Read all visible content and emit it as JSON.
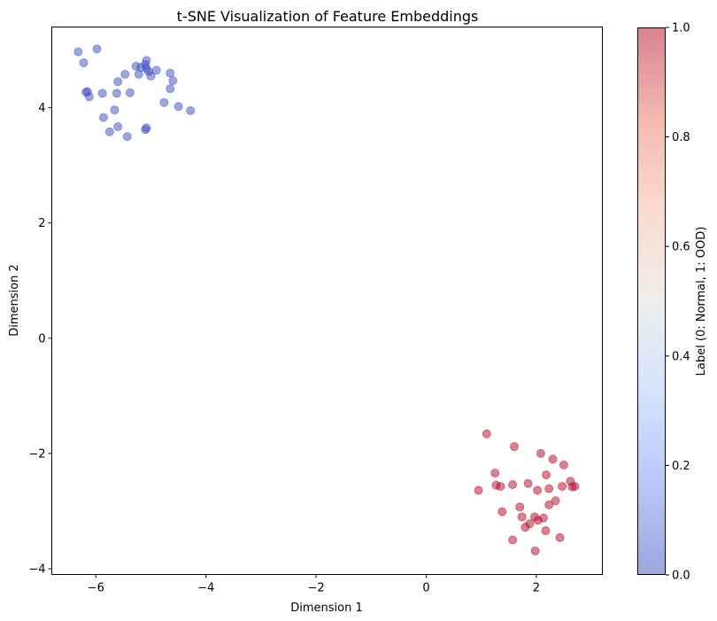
{
  "chart_data": {
    "type": "scatter",
    "title": "t-SNE Visualization of Feature Embeddings",
    "xlabel": "Dimension 1",
    "ylabel": "Dimension 2",
    "xlim": [
      -6.8,
      3.2
    ],
    "ylim": [
      -4.1,
      5.4
    ],
    "xticks": [
      -6,
      -4,
      -2,
      0,
      2
    ],
    "yticks": [
      -4,
      -2,
      0,
      2,
      4
    ],
    "tick_labels": {
      "x": [
        "−6",
        "−4",
        "−2",
        "0",
        "2"
      ],
      "y": [
        "−4",
        "−2",
        "0",
        "2",
        "4"
      ]
    },
    "grid": false,
    "colormap": "coolwarm",
    "point_alpha": 0.5,
    "colorbar": {
      "label": "Label (0: Normal, 1: OOD)",
      "range": [
        0.0,
        1.0
      ],
      "ticks": [
        0.0,
        0.2,
        0.4,
        0.6,
        0.8,
        1.0
      ],
      "tick_labels": [
        "0.0",
        "0.2",
        "0.4",
        "0.6",
        "0.8",
        "1.0"
      ],
      "colors": [
        "#3b4cc0",
        "#6f92f3",
        "#aac7fd",
        "#dddcdc",
        "#f7b89c",
        "#e7745b",
        "#b40426"
      ]
    },
    "series": [
      {
        "label_value": 0,
        "color": "#3b4cc0",
        "points": [
          [
            -6.32,
            4.97
          ],
          [
            -6.22,
            4.78
          ],
          [
            -5.98,
            5.02
          ],
          [
            -6.15,
            4.28
          ],
          [
            -6.18,
            4.27
          ],
          [
            -6.12,
            4.19
          ],
          [
            -5.88,
            4.25
          ],
          [
            -5.62,
            4.25
          ],
          [
            -5.6,
            4.45
          ],
          [
            -5.47,
            4.58
          ],
          [
            -5.27,
            4.72
          ],
          [
            -5.18,
            4.7
          ],
          [
            -5.08,
            4.82
          ],
          [
            -5.1,
            4.75
          ],
          [
            -5.04,
            4.63
          ],
          [
            -5.0,
            4.55
          ],
          [
            -5.22,
            4.58
          ],
          [
            -5.08,
            4.68
          ],
          [
            -4.9,
            4.65
          ],
          [
            -4.65,
            4.6
          ],
          [
            -4.6,
            4.47
          ],
          [
            -4.65,
            4.33
          ],
          [
            -4.76,
            4.09
          ],
          [
            -4.5,
            4.02
          ],
          [
            -4.28,
            3.95
          ],
          [
            -5.38,
            4.26
          ],
          [
            -5.66,
            3.96
          ],
          [
            -5.86,
            3.83
          ],
          [
            -5.6,
            3.67
          ],
          [
            -5.75,
            3.58
          ],
          [
            -5.43,
            3.5
          ],
          [
            -5.1,
            3.62
          ],
          [
            -5.08,
            3.65
          ]
        ]
      },
      {
        "label_value": 1,
        "color": "#b40426",
        "points": [
          [
            1.1,
            -1.66
          ],
          [
            1.6,
            -1.88
          ],
          [
            2.08,
            -2.0
          ],
          [
            2.3,
            -2.1
          ],
          [
            2.5,
            -2.2
          ],
          [
            2.18,
            -2.37
          ],
          [
            1.25,
            -2.34
          ],
          [
            0.95,
            -2.64
          ],
          [
            1.27,
            -2.55
          ],
          [
            1.35,
            -2.57
          ],
          [
            1.57,
            -2.54
          ],
          [
            1.85,
            -2.52
          ],
          [
            2.02,
            -2.64
          ],
          [
            2.23,
            -2.61
          ],
          [
            2.47,
            -2.57
          ],
          [
            2.62,
            -2.48
          ],
          [
            2.65,
            -2.58
          ],
          [
            2.7,
            -2.57
          ],
          [
            2.35,
            -2.82
          ],
          [
            2.23,
            -2.89
          ],
          [
            1.7,
            -2.93
          ],
          [
            1.38,
            -3.01
          ],
          [
            1.74,
            -3.1
          ],
          [
            1.97,
            -3.1
          ],
          [
            2.13,
            -3.12
          ],
          [
            2.03,
            -3.16
          ],
          [
            1.88,
            -3.22
          ],
          [
            1.8,
            -3.28
          ],
          [
            2.17,
            -3.34
          ],
          [
            2.43,
            -3.46
          ],
          [
            1.57,
            -3.5
          ],
          [
            1.98,
            -3.69
          ]
        ]
      }
    ]
  }
}
